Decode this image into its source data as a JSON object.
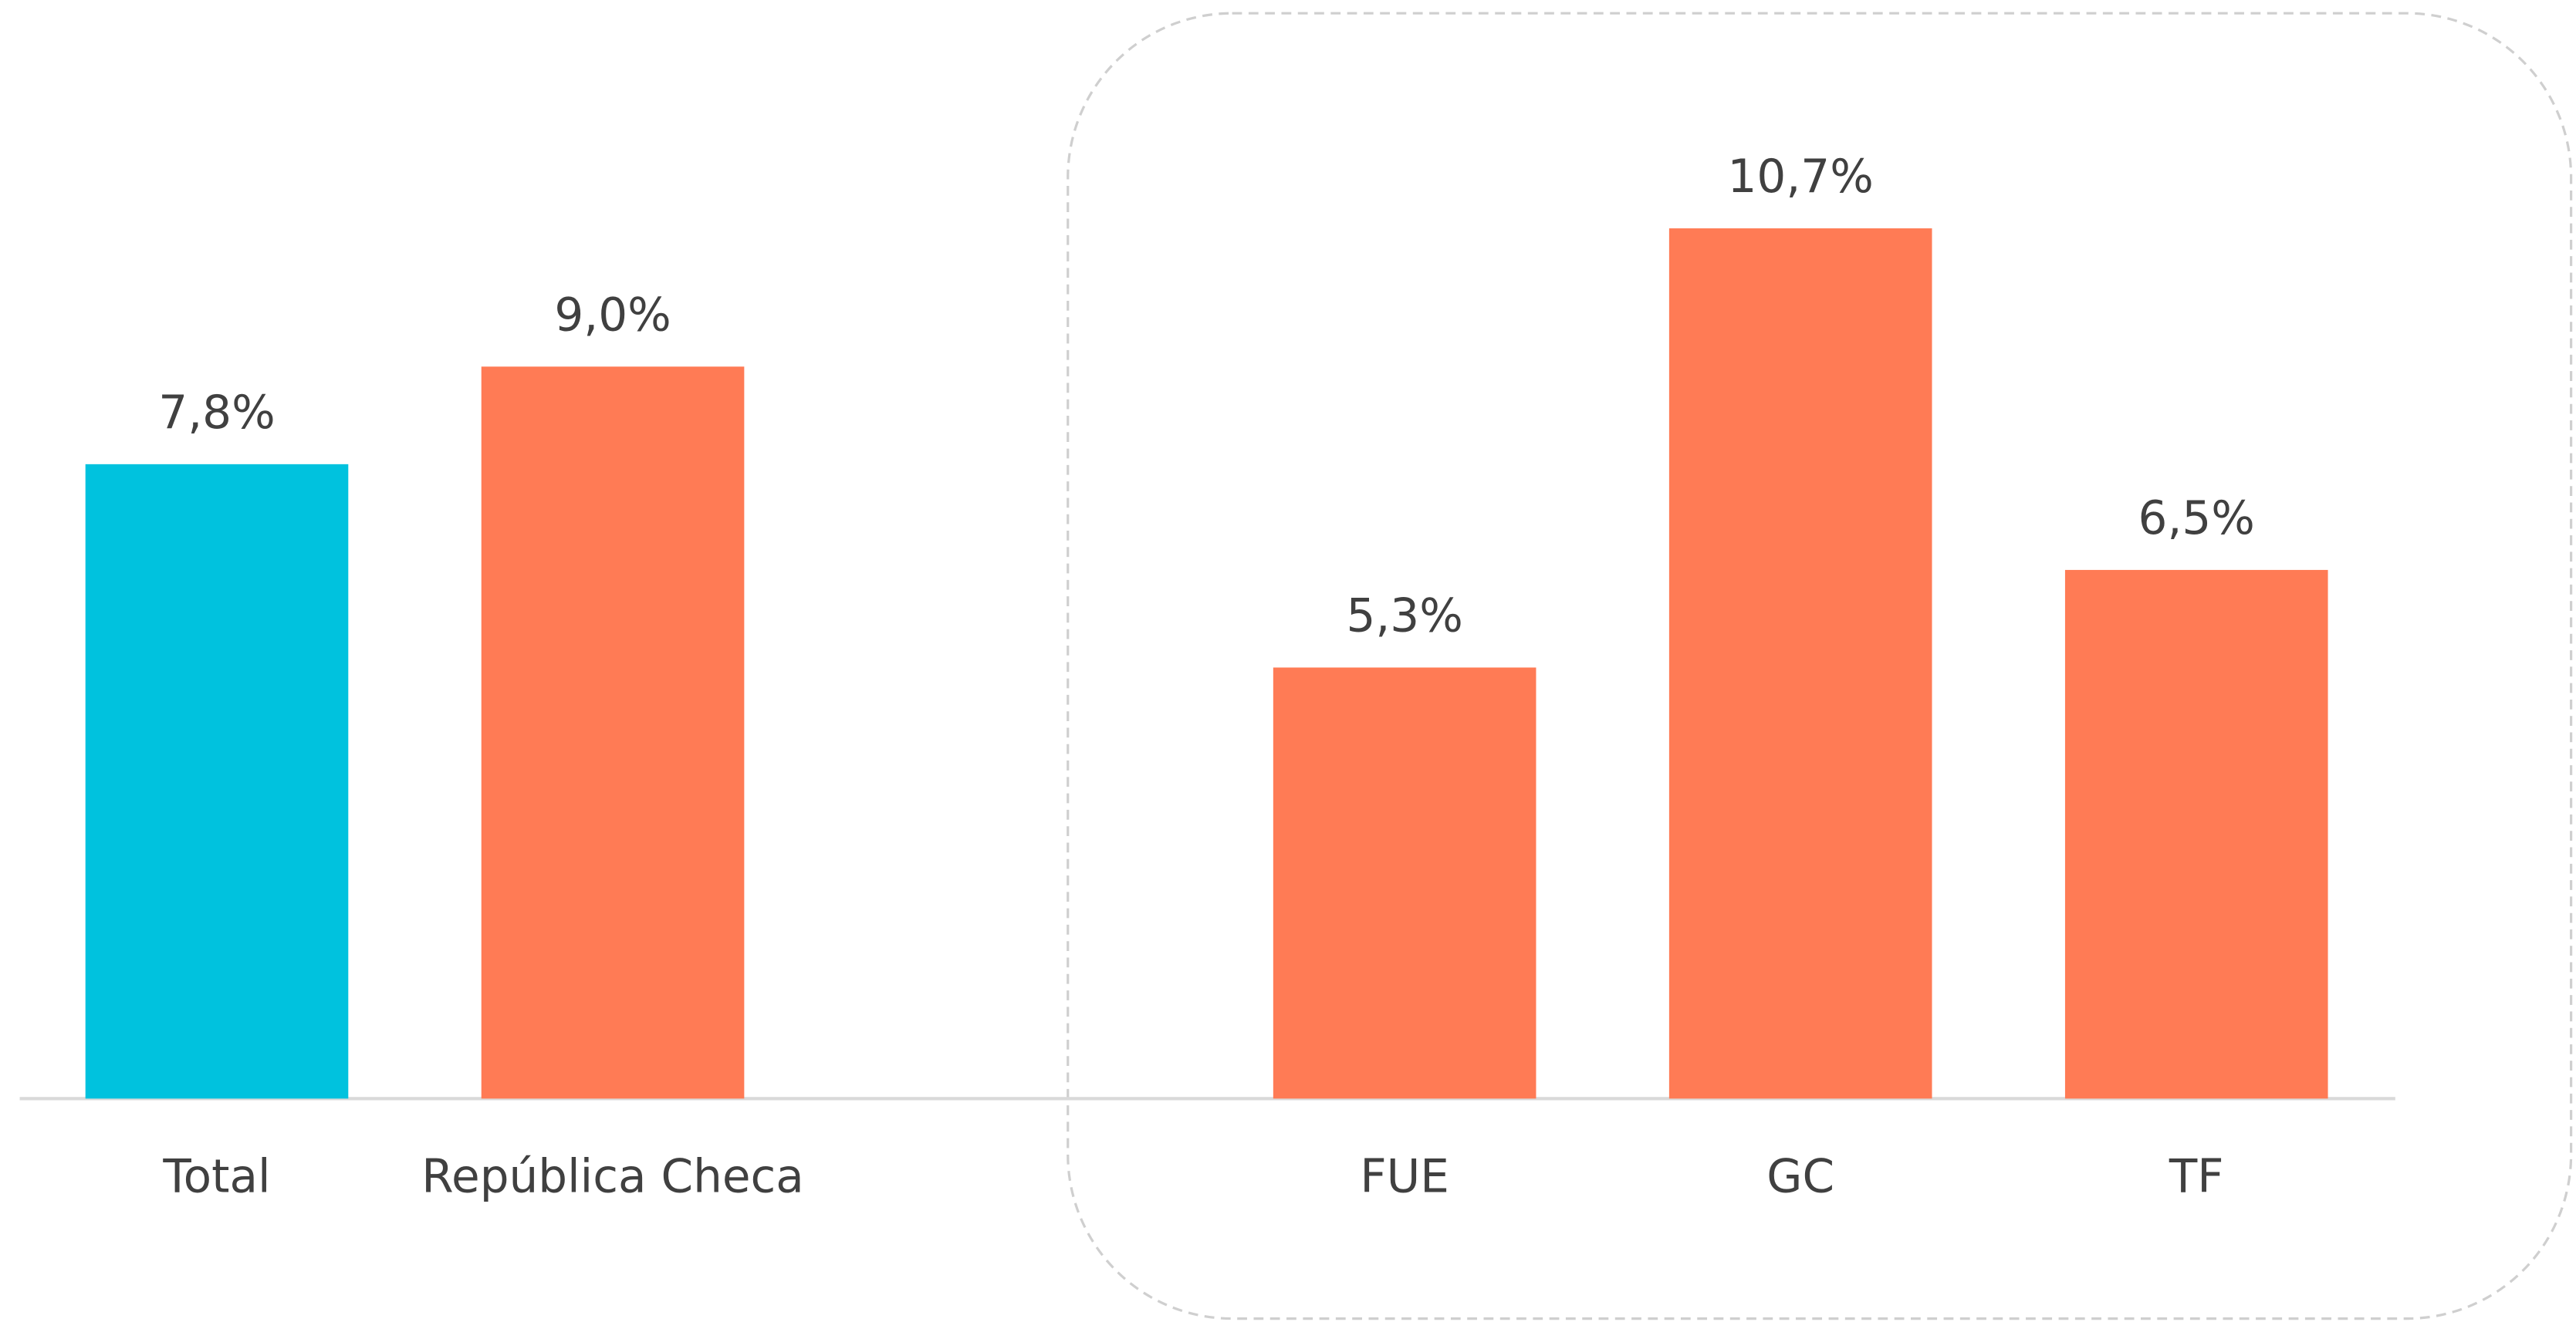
{
  "chart_data": {
    "type": "bar",
    "categories": [
      "Total",
      "República Checa",
      null,
      "FUE",
      "GC",
      "TF"
    ],
    "values": [
      7.8,
      9.0,
      null,
      5.3,
      10.7,
      6.5
    ],
    "value_labels": [
      "7,8%",
      "9,0%",
      null,
      "5,3%",
      "10,7%",
      "6,5%"
    ],
    "colors": [
      "#00c2de",
      "#ff7b55",
      null,
      "#ff7b55",
      "#ff7b55",
      "#ff7b55"
    ]
  }
}
